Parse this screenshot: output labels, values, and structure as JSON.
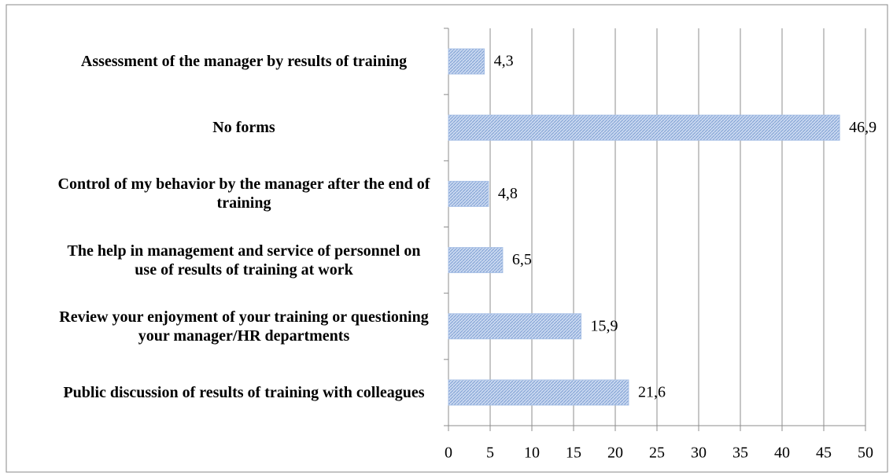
{
  "chart_data": {
    "type": "hbar",
    "categories": [
      "Assessment of the manager by results of training",
      "No forms",
      "Control of my behavior by the manager after the end of training",
      "The help in management and service of personnel on use of results of training at work",
      "Review your enjoyment of your training or questioning your manager/HR departments",
      "Public discussion of results of training with colleagues"
    ],
    "values": [
      4.3,
      46.9,
      4.8,
      6.5,
      15.9,
      21.6
    ],
    "value_labels": [
      "4,3",
      "46,9",
      "4,8",
      "6,5",
      "15,9",
      "21,6"
    ],
    "color": "#a9c1e6",
    "xlim": [
      0,
      50
    ],
    "xticks": [
      0,
      5,
      10,
      15,
      20,
      25,
      30,
      35,
      40,
      45,
      50
    ],
    "grid": true
  }
}
